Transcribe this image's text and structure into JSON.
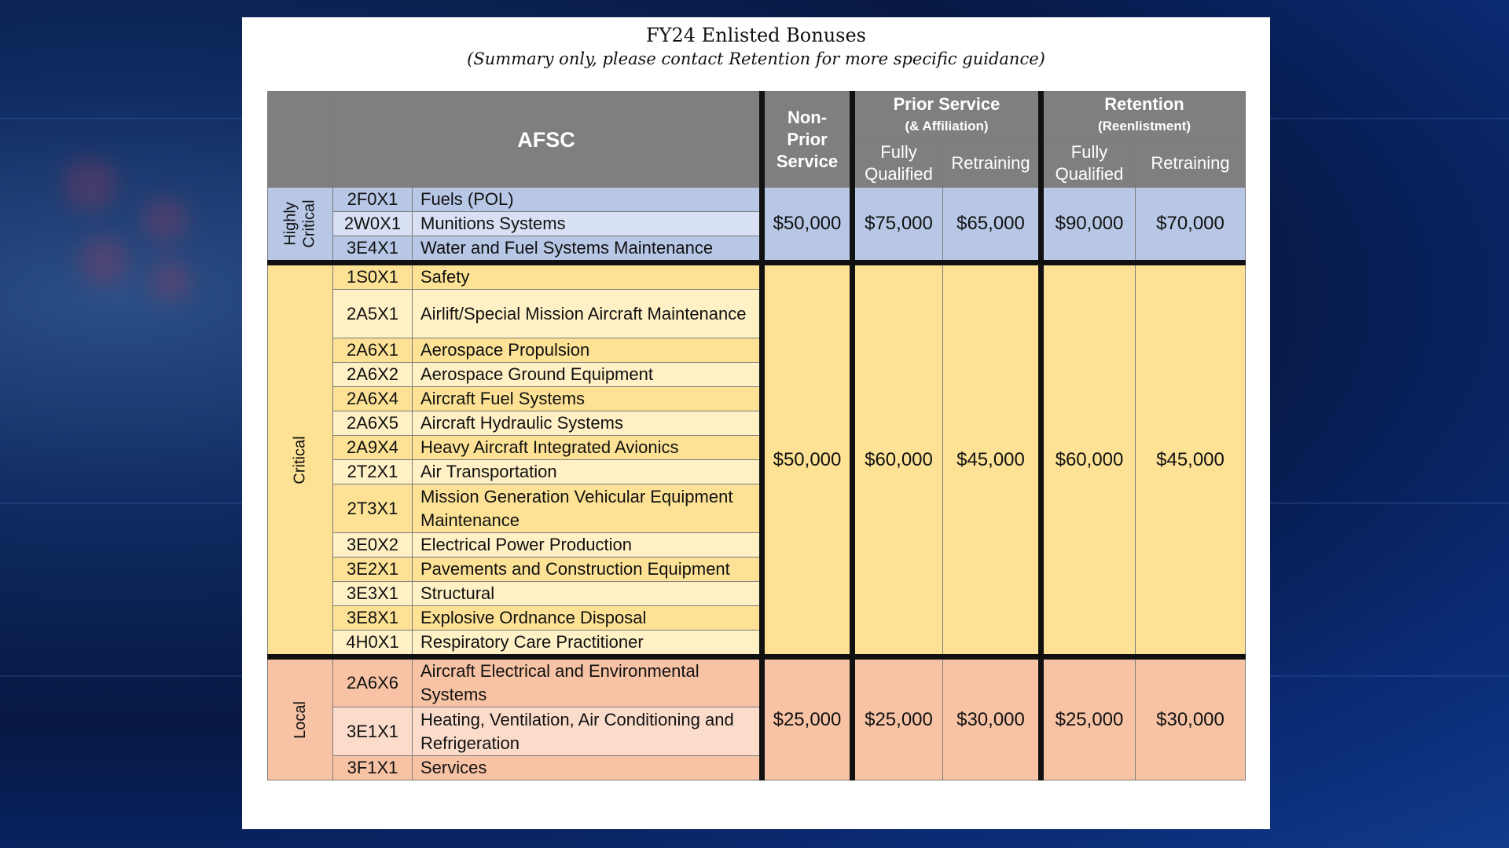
{
  "document": {
    "title": "FY24 Enlisted Bonuses",
    "subtitle": "(Summary only, please contact Retention for more specific guidance)"
  },
  "table": {
    "headers": {
      "afsc": "AFSC",
      "non_prior_line1": "Non-",
      "non_prior_line2": "Prior",
      "non_prior_line3": "Service",
      "prior_service": "Prior Service",
      "prior_service_sub": "(& Affiliation)",
      "retention": "Retention",
      "retention_sub": "(Reenlistment)",
      "fully_line1": "Fully",
      "fully_line2": "Qualified",
      "retraining": "Retraining"
    },
    "groups": [
      {
        "category_line1": "Highly",
        "category_line2": "Critical",
        "amounts": {
          "non_prior": "$50,000",
          "ps_fully": "$75,000",
          "ps_retraining": "$65,000",
          "ret_fully": "$90,000",
          "ret_retraining": "$70,000"
        },
        "rows": [
          {
            "code": "2F0X1",
            "name": "Fuels (POL)"
          },
          {
            "code": "2W0X1",
            "name": "Munitions Systems"
          },
          {
            "code": "3E4X1",
            "name": "Water and Fuel Systems Maintenance"
          }
        ]
      },
      {
        "category": "Critical",
        "amounts": {
          "non_prior": "$50,000",
          "ps_fully": "$60,000",
          "ps_retraining": "$45,000",
          "ret_fully": "$60,000",
          "ret_retraining": "$45,000"
        },
        "rows": [
          {
            "code": "1S0X1",
            "name": "Safety"
          },
          {
            "code": "2A5X1",
            "name": "Airlift/Special Mission Aircraft Maintenance"
          },
          {
            "code": "2A6X1",
            "name": "Aerospace Propulsion"
          },
          {
            "code": "2A6X2",
            "name": "Aerospace Ground Equipment"
          },
          {
            "code": "2A6X4",
            "name": "Aircraft Fuel Systems"
          },
          {
            "code": "2A6X5",
            "name": "Aircraft Hydraulic Systems"
          },
          {
            "code": "2A9X4",
            "name": "Heavy Aircraft Integrated Avionics"
          },
          {
            "code": "2T2X1",
            "name": "Air Transportation"
          },
          {
            "code": "2T3X1",
            "name": "Mission Generation Vehicular Equipment Maintenance"
          },
          {
            "code": "3E0X2",
            "name": "Electrical Power Production"
          },
          {
            "code": "3E2X1",
            "name": "Pavements and Construction Equipment"
          },
          {
            "code": "3E3X1",
            "name": "Structural"
          },
          {
            "code": "3E8X1",
            "name": "Explosive Ordnance Disposal"
          },
          {
            "code": "4H0X1",
            "name": "Respiratory Care Practitioner"
          }
        ]
      },
      {
        "category": "Local",
        "amounts": {
          "non_prior": "$25,000",
          "ps_fully": "$25,000",
          "ps_retraining": "$30,000",
          "ret_fully": "$25,000",
          "ret_retraining": "$30,000"
        },
        "rows": [
          {
            "code": "2A6X6",
            "name": "Aircraft Electrical and Environmental Systems"
          },
          {
            "code": "3E1X1",
            "name": "Heating, Ventilation, Air Conditioning and Refrigeration"
          },
          {
            "code": "3F1X1",
            "name": "Services"
          }
        ]
      }
    ]
  }
}
